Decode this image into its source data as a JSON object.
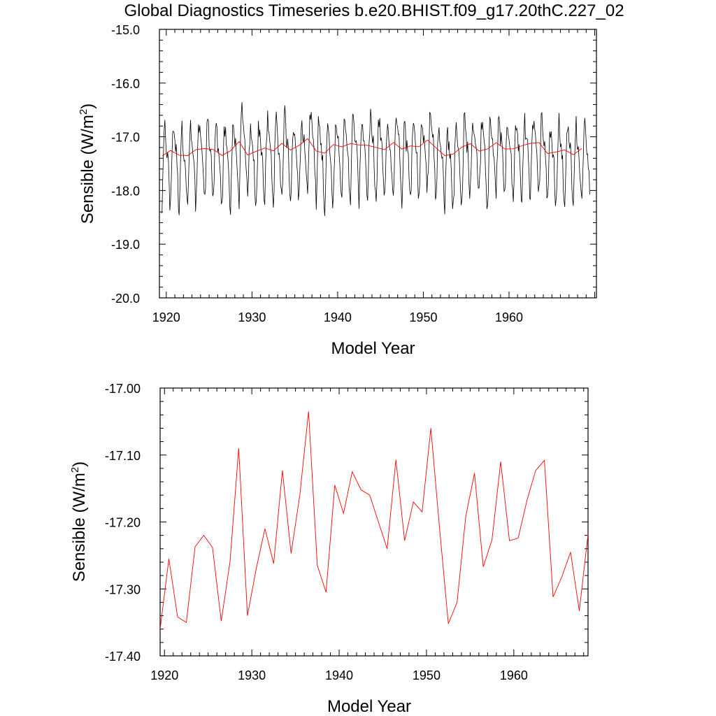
{
  "title": "Global Diagnostics Timeseries b.e20.BHIST.f09_g17.20thC.227_02",
  "chart_data": [
    {
      "type": "line",
      "xlabel": "Model Year",
      "ylabel_main": "Sensible (W/m",
      "ylabel_sup": "2",
      "ylabel_close": ")",
      "xlim": [
        1919.2,
        1970.2
      ],
      "ylim": [
        -20.0,
        -15.0
      ],
      "xticks": [
        1920,
        1930,
        1940,
        1950,
        1960
      ],
      "xtick_labels": [
        "1920",
        "1930",
        "1940",
        "1950",
        "1960"
      ],
      "yticks": [
        -20.0,
        -19.0,
        -18.0,
        -17.0,
        -16.0,
        -15.0
      ],
      "ytick_labels": [
        "-20.0",
        "-19.0",
        "-18.0",
        "-17.0",
        "-16.0",
        "-15.0"
      ],
      "monthly_series": {
        "color": "#000000",
        "seasonal_amplitude": 0.95,
        "seasonal_offset": -17.55,
        "x_start": 1919.5,
        "n_months": 600
      },
      "series": [
        {
          "color": "#ff0000",
          "x": [
            1919.5,
            1920.5,
            1921.5,
            1922.5,
            1923.5,
            1924.5,
            1925.5,
            1926.5,
            1927.5,
            1928.5,
            1929.5,
            1930.5,
            1931.5,
            1932.5,
            1933.5,
            1934.5,
            1935.5,
            1936.5,
            1937.5,
            1938.5,
            1939.5,
            1940.5,
            1941.5,
            1942.5,
            1943.5,
            1944.5,
            1945.5,
            1946.5,
            1947.5,
            1948.5,
            1949.5,
            1950.5,
            1951.5,
            1952.5,
            1953.5,
            1954.5,
            1955.5,
            1956.5,
            1957.5,
            1958.5,
            1959.5,
            1960.5,
            1961.5,
            1962.5,
            1963.5,
            1964.5,
            1965.5,
            1966.5,
            1967.5,
            1968.5
          ],
          "values": [
            -17.36,
            -17.255,
            -17.342,
            -17.35,
            -17.237,
            -17.22,
            -17.238,
            -17.348,
            -17.26,
            -17.09,
            -17.34,
            -17.27,
            -17.21,
            -17.262,
            -17.123,
            -17.247,
            -17.16,
            -17.035,
            -17.265,
            -17.305,
            -17.145,
            -17.187,
            -17.125,
            -17.152,
            -17.16,
            -17.2,
            -17.24,
            -17.107,
            -17.228,
            -17.17,
            -17.185,
            -17.06,
            -17.21,
            -17.352,
            -17.32,
            -17.192,
            -17.127,
            -17.267,
            -17.227,
            -17.11,
            -17.228,
            -17.224,
            -17.168,
            -17.123,
            -17.108,
            -17.312,
            -17.282,
            -17.245,
            -17.333,
            -17.218
          ]
        }
      ]
    },
    {
      "type": "line",
      "xlabel": "Model Year",
      "ylabel_main": "Sensible (W/m",
      "ylabel_sup": "2",
      "ylabel_close": ")",
      "xlim": [
        1919.5,
        1968.5
      ],
      "ylim": [
        -17.4,
        -17.0
      ],
      "xticks": [
        1920,
        1930,
        1940,
        1950,
        1960
      ],
      "xtick_labels": [
        "1920",
        "1930",
        "1940",
        "1950",
        "1960"
      ],
      "yticks": [
        -17.4,
        -17.3,
        -17.2,
        -17.1,
        -17.0
      ],
      "ytick_labels": [
        "-17.40",
        "-17.30",
        "-17.20",
        "-17.10",
        "-17.00"
      ],
      "series": [
        {
          "color": "#ff0000",
          "x": [
            1919.5,
            1920.5,
            1921.5,
            1922.5,
            1923.5,
            1924.5,
            1925.5,
            1926.5,
            1927.5,
            1928.5,
            1929.5,
            1930.5,
            1931.5,
            1932.5,
            1933.5,
            1934.5,
            1935.5,
            1936.5,
            1937.5,
            1938.5,
            1939.5,
            1940.5,
            1941.5,
            1942.5,
            1943.5,
            1944.5,
            1945.5,
            1946.5,
            1947.5,
            1948.5,
            1949.5,
            1950.5,
            1951.5,
            1952.5,
            1953.5,
            1954.5,
            1955.5,
            1956.5,
            1957.5,
            1958.5,
            1959.5,
            1960.5,
            1961.5,
            1962.5,
            1963.5,
            1964.5,
            1965.5,
            1966.5,
            1967.5,
            1968.5
          ],
          "values": [
            -17.36,
            -17.255,
            -17.342,
            -17.35,
            -17.237,
            -17.22,
            -17.238,
            -17.348,
            -17.26,
            -17.09,
            -17.34,
            -17.27,
            -17.21,
            -17.262,
            -17.123,
            -17.247,
            -17.16,
            -17.035,
            -17.265,
            -17.305,
            -17.145,
            -17.187,
            -17.125,
            -17.152,
            -17.16,
            -17.2,
            -17.24,
            -17.107,
            -17.228,
            -17.17,
            -17.185,
            -17.06,
            -17.21,
            -17.352,
            -17.32,
            -17.192,
            -17.127,
            -17.267,
            -17.227,
            -17.11,
            -17.228,
            -17.224,
            -17.168,
            -17.123,
            -17.108,
            -17.312,
            -17.282,
            -17.245,
            -17.333,
            -17.218
          ]
        }
      ]
    }
  ]
}
